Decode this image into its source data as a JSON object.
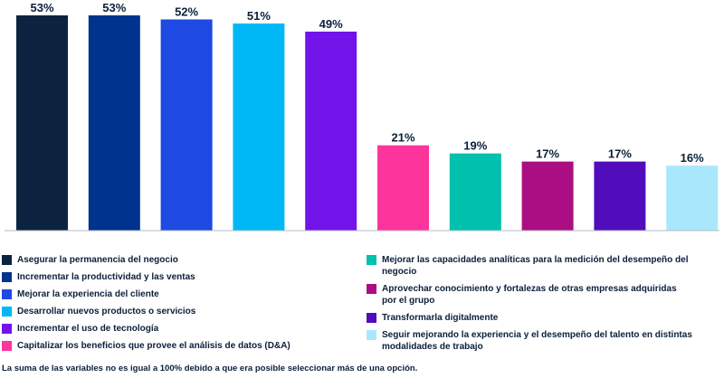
{
  "chart_data": {
    "type": "bar",
    "categories": [
      "Asegurar la permanencia del negocio",
      "Incrementar la productividad y las ventas",
      "Mejorar la experiencia del cliente",
      "Desarrollar nuevos productos o servicios",
      "Incrementar el uso de tecnología",
      "Capitalizar los beneficios que provee el análisis de datos (D&A)",
      "Mejorar las capacidades analíticas para la medición del desempeño del negocio",
      "Aprovechar conocimiento y fortalezas de otras empresas adquiridas por el grupo",
      "Transformarla digitalmente",
      "Seguir mejorando la experiencia y el desempeño del talento en distintas modalidades de trabajo"
    ],
    "values": [
      53,
      53,
      52,
      51,
      49,
      21,
      19,
      17,
      17,
      16
    ],
    "value_labels": [
      "53%",
      "53%",
      "52%",
      "51%",
      "49%",
      "21%",
      "19%",
      "17%",
      "17%",
      "16%"
    ],
    "colors": [
      "#0c2340",
      "#00338d",
      "#1e49e2",
      "#00b8f5",
      "#7213ea",
      "#fd349c",
      "#00c0ae",
      "#ab0d82",
      "#510dbc",
      "#a9e8fc"
    ],
    "ylim": [
      0,
      53
    ],
    "grid": false,
    "legend_placement": "bottom",
    "note": "La suma de las variables no es igual a 100% debido a que era posible seleccionar más de una opción."
  }
}
